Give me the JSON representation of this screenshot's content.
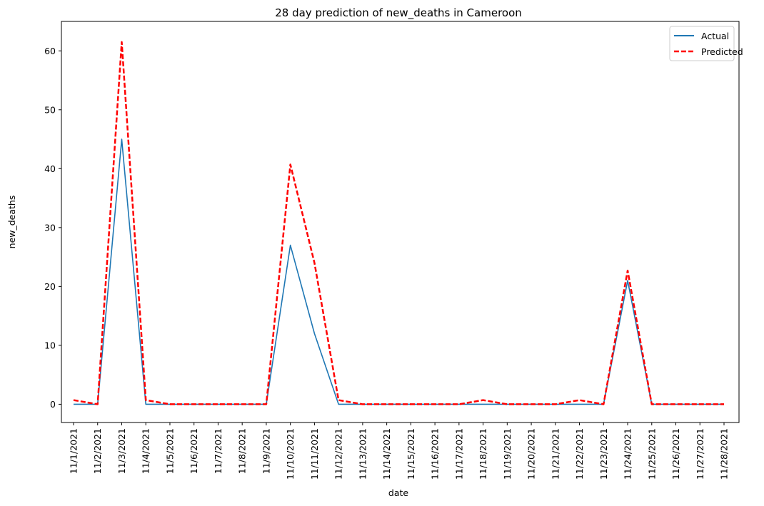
{
  "chart_data": {
    "type": "line",
    "title": "28 day prediction of new_deaths in Cameroon",
    "xlabel": "date",
    "ylabel": "new_deaths",
    "ylim": [
      -3.1,
      65
    ],
    "yticks": [
      0,
      10,
      20,
      30,
      40,
      50,
      60
    ],
    "grid": false,
    "legend_position": "top-right",
    "categories": [
      "11/1/2021",
      "11/2/2021",
      "11/3/2021",
      "11/4/2021",
      "11/5/2021",
      "11/6/2021",
      "11/7/2021",
      "11/8/2021",
      "11/9/2021",
      "11/10/2021",
      "11/11/2021",
      "11/12/2021",
      "11/13/2021",
      "11/14/2021",
      "11/15/2021",
      "11/16/2021",
      "11/17/2021",
      "11/18/2021",
      "11/19/2021",
      "11/20/2021",
      "11/21/2021",
      "11/22/2021",
      "11/23/2021",
      "11/24/2021",
      "11/25/2021",
      "11/26/2021",
      "11/27/2021",
      "11/28/2021"
    ],
    "series": [
      {
        "name": "Actual",
        "color": "#1f77b4",
        "style": "solid",
        "values": [
          0,
          0,
          45,
          0,
          0,
          0,
          0,
          0,
          0,
          27,
          12,
          0,
          0,
          0,
          0,
          0,
          0,
          0,
          0,
          0,
          0,
          0,
          0,
          21,
          0,
          0,
          0,
          0
        ]
      },
      {
        "name": "Predicted",
        "color": "#ff0000",
        "style": "dashed",
        "values": [
          0.7,
          0,
          61.5,
          0.7,
          0,
          0,
          0,
          0,
          0,
          40.7,
          24,
          0.7,
          0,
          0,
          0,
          0,
          0,
          0.7,
          0,
          0,
          0,
          0.7,
          0,
          22.7,
          0,
          0,
          0,
          0
        ]
      }
    ]
  }
}
